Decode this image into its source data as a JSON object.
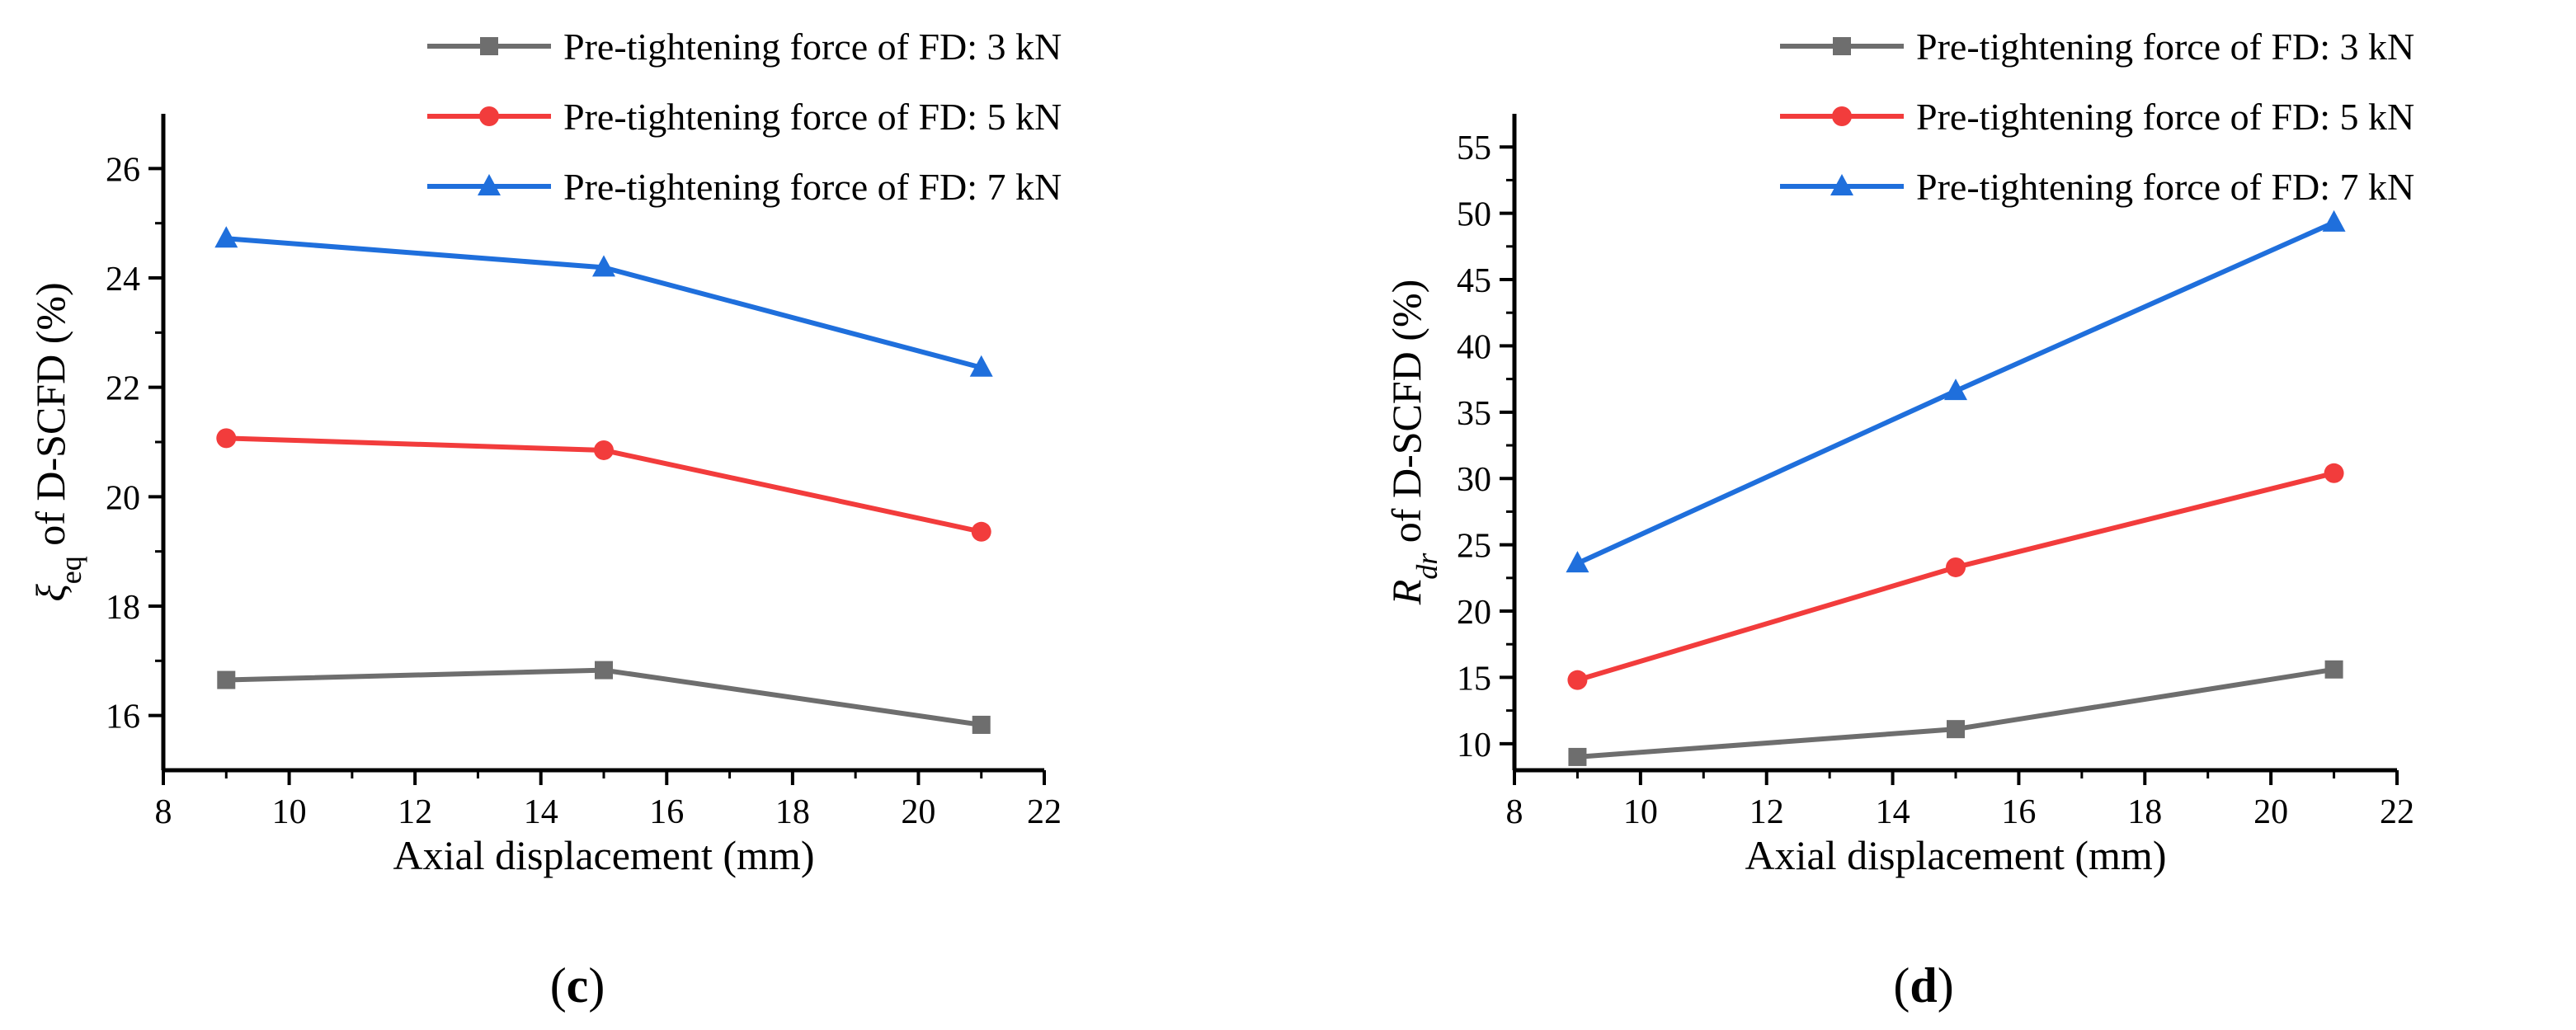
{
  "chart_data": [
    {
      "type": "line",
      "panel_label": {
        "open": "(",
        "letter": "c",
        "close": ")"
      },
      "xlabel": "Axial displacement (mm)",
      "ylabel": {
        "symbol": "ξ",
        "subscript": "eq",
        "text": " of D-SCFD (%)"
      },
      "x": [
        9,
        15,
        21
      ],
      "xlim": [
        8,
        22
      ],
      "ylim": [
        15,
        27
      ],
      "xticks": [
        8,
        10,
        12,
        14,
        16,
        18,
        20,
        22
      ],
      "yticks": [
        16,
        18,
        20,
        22,
        24,
        26
      ],
      "series": [
        {
          "name": "Pre-tightening force of FD: 3 kN",
          "marker": "square",
          "color": "#6e6e6e",
          "values": [
            16.65,
            16.83,
            15.83
          ]
        },
        {
          "name": "Pre-tightening force of FD: 5 kN",
          "marker": "circle",
          "color": "#f23c3c",
          "values": [
            21.07,
            20.85,
            19.36
          ]
        },
        {
          "name": "Pre-tightening force of FD: 7 kN",
          "marker": "triangle",
          "color": "#1f6fdc",
          "values": [
            24.72,
            24.19,
            22.36
          ]
        }
      ]
    },
    {
      "type": "line",
      "panel_label": {
        "open": "(",
        "letter": "d",
        "close": ")"
      },
      "xlabel": "Axial displacement (mm)",
      "ylabel": {
        "symbol": "R",
        "subscript": "dr",
        "text": " of D-SCFD (%)"
      },
      "x": [
        9,
        15,
        21
      ],
      "xlim": [
        8,
        22
      ],
      "ylim": [
        8,
        57.5
      ],
      "xticks": [
        8,
        10,
        12,
        14,
        16,
        18,
        20,
        22
      ],
      "yticks": [
        10,
        15,
        20,
        25,
        30,
        35,
        40,
        45,
        50,
        55
      ],
      "series": [
        {
          "name": "Pre-tightening force of FD: 3 kN",
          "marker": "square",
          "color": "#6e6e6e",
          "values": [
            9.0,
            11.1,
            15.6
          ]
        },
        {
          "name": "Pre-tightening force of FD: 5 kN",
          "marker": "circle",
          "color": "#f23c3c",
          "values": [
            14.8,
            23.3,
            30.4
          ]
        },
        {
          "name": "Pre-tightening force of FD: 7 kN",
          "marker": "triangle",
          "color": "#1f6fdc",
          "values": [
            23.6,
            36.6,
            49.3
          ]
        }
      ]
    }
  ]
}
